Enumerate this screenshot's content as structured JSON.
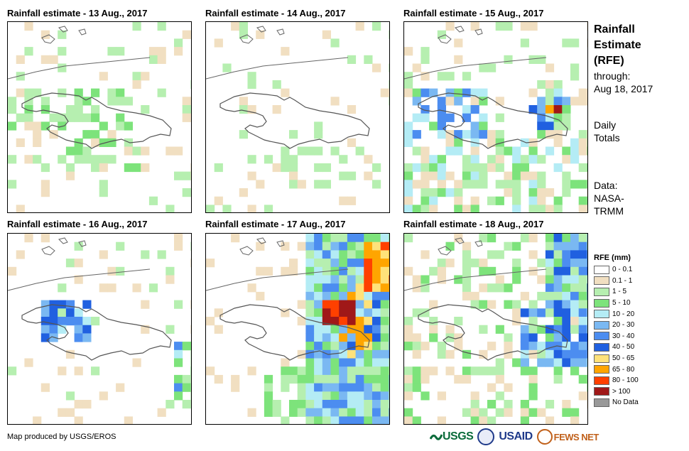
{
  "panels": [
    {
      "title": "Rainfall estimate - 13 Aug., 2017"
    },
    {
      "title": "Rainfall estimate - 14 Aug., 2017"
    },
    {
      "title": "Rainfall estimate - 15 Aug., 2017"
    },
    {
      "title": "Rainfall estimate - 16 Aug., 2017"
    },
    {
      "title": "Rainfall estimate - 17 Aug., 2017"
    },
    {
      "title": "Rainfall estimate - 18 Aug., 2017"
    }
  ],
  "sidebar": {
    "title_line1": "Rainfall",
    "title_line2": "Estimate",
    "title_line3": "(RFE)",
    "through_label": "through:",
    "through_date": "Aug 18, 2017",
    "daily_line1": "Daily",
    "daily_line2": "Totals",
    "data_line1": "Data:",
    "data_line2": "NASA-",
    "data_line3": "TRMM"
  },
  "legend": {
    "title": "RFE (mm)",
    "items": [
      {
        "label": "0 - 0.1",
        "color": "#ffffff"
      },
      {
        "label": "0.1 - 1",
        "color": "#f1dfc1"
      },
      {
        "label": "1 - 5",
        "color": "#b6efb0"
      },
      {
        "label": "5 - 10",
        "color": "#7de37b"
      },
      {
        "label": "10 - 20",
        "color": "#b4ecf5"
      },
      {
        "label": "20 - 30",
        "color": "#7ab8f2"
      },
      {
        "label": "30 - 40",
        "color": "#4c8df0"
      },
      {
        "label": "40 - 50",
        "color": "#2060e0"
      },
      {
        "label": "50 - 65",
        "color": "#ffe27a"
      },
      {
        "label": "65 - 80",
        "color": "#ffa500"
      },
      {
        "label": "80 - 100",
        "color": "#ff4000"
      },
      {
        "label": "> 100",
        "color": "#a01818"
      },
      {
        "label": "No Data",
        "color": "#999999"
      }
    ]
  },
  "footer": {
    "credit": "Map produced by USGS/EROS",
    "logo_usgs": "USGS",
    "logo_usaid": "USAID",
    "logo_fewsnet": "FEWS NET"
  }
}
